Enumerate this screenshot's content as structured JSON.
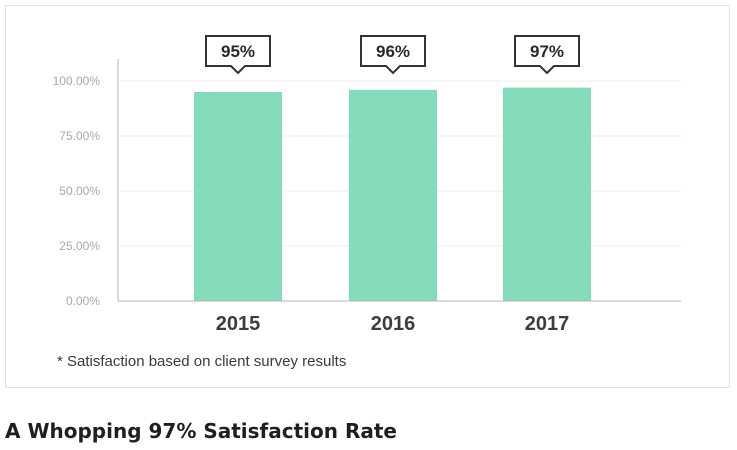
{
  "chart_data": {
    "type": "bar",
    "categories": [
      "2015",
      "2016",
      "2017"
    ],
    "values": [
      95,
      96,
      97
    ],
    "data_labels": [
      "95%",
      "96%",
      "97%"
    ],
    "yticks": [
      "0.00%",
      "25.00%",
      "50.00%",
      "75.00%",
      "100.00%"
    ],
    "ylim": [
      0,
      100
    ],
    "grid": true,
    "bar_color": "#84dcba",
    "grid_color": "#ececec",
    "axis_color": "#b5b5b5",
    "tick_label_color": "#a8a8a8",
    "category_label_color": "#3d3d3d",
    "callout_border_color": "#333333"
  },
  "footnote": "* Satisfaction based on client survey results",
  "heading": "A Whopping 97% Satisfaction Rate"
}
